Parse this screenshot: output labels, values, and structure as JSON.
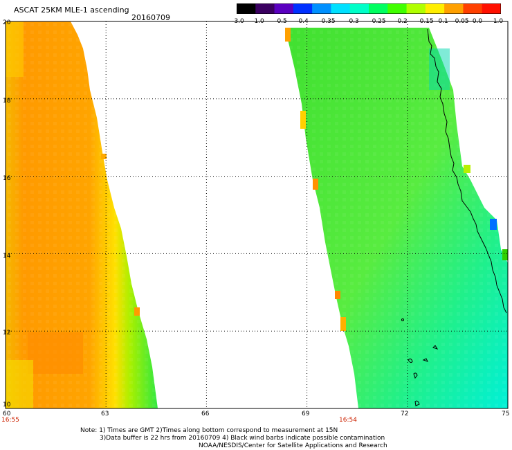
{
  "title": "ASCAT 25KM MLE-1 ascending",
  "date": "20160709",
  "colorbar": {
    "labels": [
      "-3.0",
      "-1.0",
      "-0.5",
      "-0.4",
      "-0.35",
      "-0.3",
      "-0.25",
      "-0.2",
      "-0.15",
      "-0.1",
      "-0.05",
      "0.0",
      "1.0"
    ],
    "colors": [
      "#000000",
      "#3a0060",
      "#5a00c0",
      "#0030ff",
      "#0090ff",
      "#00e0ff",
      "#00ffc8",
      "#00ff60",
      "#40ff00",
      "#b0ff00",
      "#ffee00",
      "#ffa000",
      "#ff4000",
      "#ff1000"
    ]
  },
  "axes": {
    "x_ticks": [
      "60",
      "63",
      "66",
      "69",
      "72",
      "75"
    ],
    "y_ticks": [
      "20",
      "18",
      "16",
      "14",
      "12",
      "10"
    ],
    "xlim": [
      60,
      75
    ],
    "ylim": [
      10,
      20
    ]
  },
  "swath_times": [
    "16:55",
    "16:54"
  ],
  "notes": [
    "Note: 1) Times are GMT 2)Times along bottom correspond to measurement at 15N",
    "3)Data buffer is 22 hrs from 20160709 4) Black wind barbs indicate possible contamination",
    "NOAA/NESDIS/Center for Satellite Applications and Research"
  ],
  "colors": {
    "orange": "#ffa000",
    "yellow": "#ffee00",
    "green": "#40ff00",
    "cyan": "#00ffc8"
  }
}
